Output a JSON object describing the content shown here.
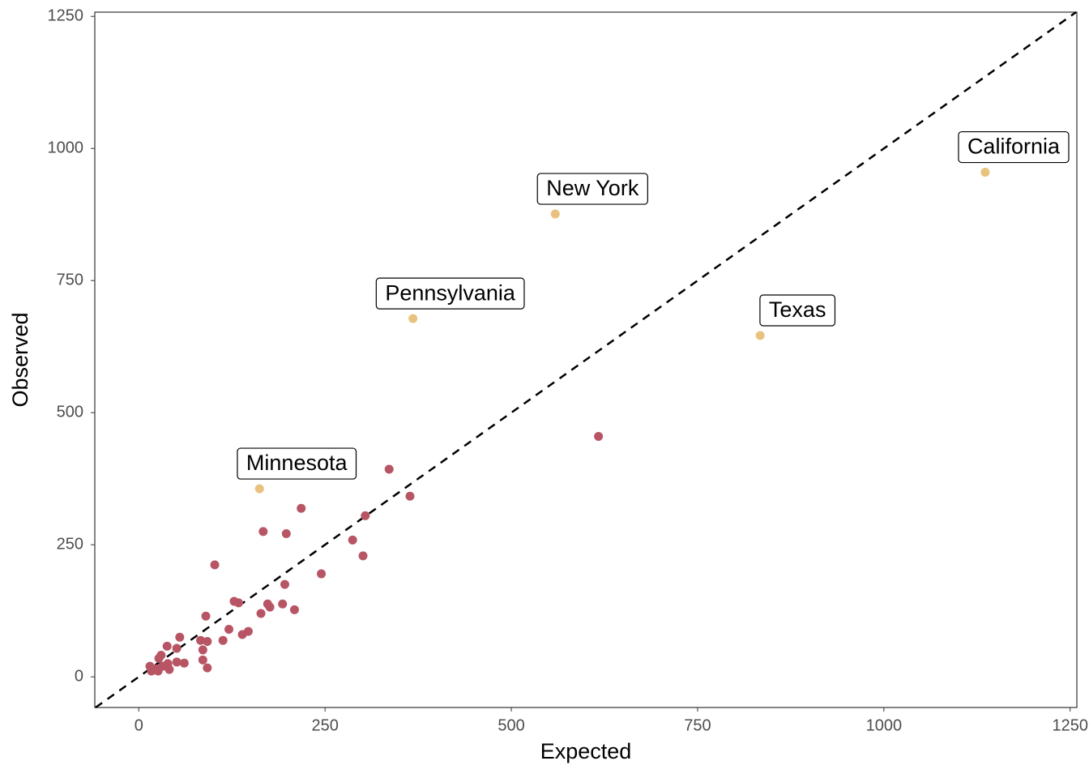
{
  "chart_data": {
    "type": "scatter",
    "x_label": "Expected",
    "y_label": "Observed",
    "xlim": [
      -59,
      1259
    ],
    "ylim": [
      -58,
      1258
    ],
    "xticks": [
      0,
      250,
      500,
      750,
      1000,
      1250
    ],
    "yticks": [
      0,
      250,
      500,
      750,
      1000,
      1250
    ],
    "reference_line": "y=x",
    "series": [
      {
        "color": "#b85564",
        "x": [
          617,
          336,
          364,
          218,
          304,
          167,
          198,
          287,
          301,
          102,
          245,
          196,
          128,
          134,
          173,
          176,
          193,
          209,
          90,
          164,
          121,
          147,
          139,
          113,
          55,
          83,
          92,
          38,
          51,
          86,
          30,
          27,
          86,
          39,
          51,
          61,
          15,
          32,
          92,
          18,
          41,
          26,
          17,
          24
        ],
        "values": [
          455,
          393,
          342,
          319,
          305,
          275,
          271,
          259,
          229,
          212,
          195,
          175,
          143,
          140,
          138,
          132,
          138,
          127,
          115,
          120,
          90,
          86,
          80,
          69,
          75,
          69,
          67,
          58,
          54,
          51,
          41,
          35,
          32,
          25,
          28,
          26,
          20,
          20,
          17,
          14,
          14,
          11,
          11,
          15
        ]
      },
      {
        "color": "#e8c27e",
        "x": [
          1136,
          559,
          368,
          834,
          162
        ],
        "values": [
          955,
          876,
          678,
          646,
          356
        ],
        "labels": [
          "California",
          "New York",
          "Pennsylvania",
          "Texas",
          "Minnesota"
        ]
      }
    ]
  }
}
